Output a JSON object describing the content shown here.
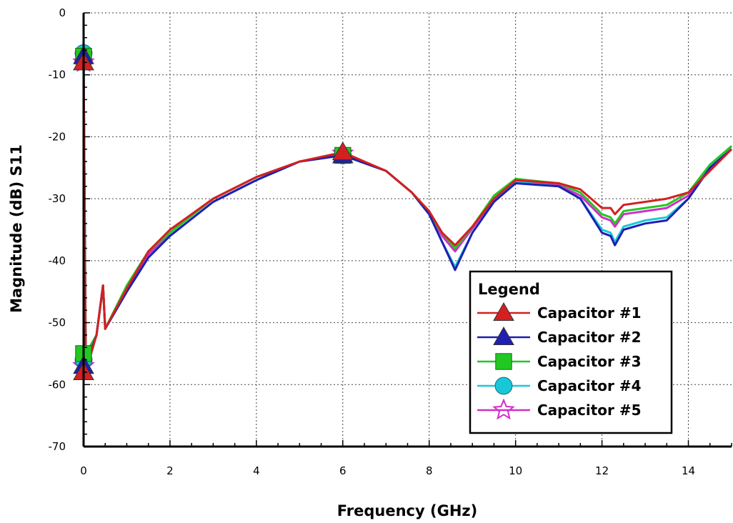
{
  "chart_data": {
    "type": "line",
    "title": "",
    "xlabel": "Frequency (GHz)",
    "ylabel": "Magnitude (dB) S11",
    "xlim": [
      0,
      15
    ],
    "ylim": [
      -70,
      0
    ],
    "x_ticks": [
      0,
      2,
      4,
      6,
      8,
      10,
      12,
      14
    ],
    "y_ticks": [
      0,
      -10,
      -20,
      -30,
      -40,
      -50,
      -60,
      -70
    ],
    "grid": true,
    "legend": {
      "title": "Legend",
      "position": "bottom-right"
    },
    "series": [
      {
        "name": "Capacitor #1",
        "color": "#d42020",
        "marker": "triangle",
        "x": [
          0,
          0.05,
          0.3,
          0.45,
          0.5,
          1,
          1.5,
          2,
          3,
          4,
          5,
          6,
          7,
          7.6,
          8,
          8.3,
          8.6,
          9,
          9.5,
          10,
          11,
          11.5,
          12,
          12.2,
          12.3,
          12.5,
          13,
          13.5,
          14,
          14.5,
          15
        ],
        "y": [
          -8,
          -58,
          -52,
          -44,
          -51,
          -44.5,
          -38.5,
          -35,
          -30,
          -26.5,
          -24,
          -22.5,
          -25.5,
          -29,
          -32,
          -35.5,
          -37.5,
          -34.5,
          -30,
          -27,
          -27.5,
          -28.5,
          -31.5,
          -31.5,
          -32.5,
          -31,
          -30.5,
          -30,
          -29,
          -25.5,
          -22
        ]
      },
      {
        "name": "Capacitor #2",
        "color": "#1f1fb0",
        "marker": "triangle",
        "x": [
          0,
          0.05,
          0.3,
          0.45,
          0.5,
          1,
          1.5,
          2,
          3,
          4,
          5,
          6,
          7,
          7.6,
          8,
          8.3,
          8.6,
          9,
          9.5,
          10,
          11,
          11.5,
          12,
          12.2,
          12.3,
          12.5,
          13,
          13.5,
          14,
          14.5,
          15
        ],
        "y": [
          -7,
          -57,
          -52,
          -44,
          -51,
          -45,
          -39.5,
          -36,
          -30.5,
          -27,
          -24,
          -23,
          -25.5,
          -29,
          -32.5,
          -37,
          -41.5,
          -35.5,
          -30.5,
          -27.5,
          -28,
          -30,
          -35.5,
          -36,
          -37.5,
          -35,
          -34,
          -33.5,
          -30,
          -25,
          -22
        ]
      },
      {
        "name": "Capacitor #3",
        "color": "#22c822",
        "marker": "square",
        "x": [
          0,
          0.05,
          0.3,
          0.45,
          0.5,
          1,
          1.5,
          2,
          3,
          4,
          5,
          6,
          7,
          7.6,
          8,
          8.3,
          8.6,
          9,
          9.5,
          10,
          11,
          11.5,
          12,
          12.2,
          12.3,
          12.5,
          13,
          13.5,
          14,
          14.5,
          15
        ],
        "y": [
          -7,
          -55,
          -52,
          -44,
          -51,
          -44,
          -38.5,
          -35.5,
          -30,
          -26.5,
          -24,
          -23,
          -25.5,
          -29,
          -32.5,
          -35.5,
          -38,
          -34.5,
          -29.5,
          -26.8,
          -27.5,
          -29,
          -32.5,
          -33,
          -34,
          -32,
          -31.5,
          -31,
          -29,
          -24.5,
          -21.5
        ]
      },
      {
        "name": "Capacitor #4",
        "color": "#18c8d8",
        "marker": "circle",
        "x": [
          0,
          0.05,
          0.3,
          0.45,
          0.5,
          1,
          1.5,
          2,
          3,
          4,
          5,
          6,
          7,
          7.6,
          8,
          8.3,
          8.6,
          9,
          9.5,
          10,
          11,
          11.5,
          12,
          12.2,
          12.3,
          12.5,
          13,
          13.5,
          14,
          14.5,
          15
        ],
        "y": [
          -6.5,
          -56,
          -52,
          -44,
          -51,
          -45,
          -39.5,
          -36,
          -30.5,
          -27,
          -24,
          -23,
          -25.5,
          -29,
          -32.5,
          -37,
          -41,
          -35.5,
          -30.5,
          -27.3,
          -28,
          -30,
          -35,
          -35.5,
          -37,
          -34.5,
          -33.5,
          -33,
          -30,
          -25,
          -21.5
        ]
      },
      {
        "name": "Capacitor #5",
        "color": "#d030c8",
        "marker": "star",
        "x": [
          0,
          0.05,
          0.3,
          0.45,
          0.5,
          1,
          1.5,
          2,
          3,
          4,
          5,
          6,
          7,
          7.6,
          8,
          8.3,
          8.6,
          9,
          9.5,
          10,
          11,
          11.5,
          12,
          12.2,
          12.3,
          12.5,
          13,
          13.5,
          14,
          14.5,
          15
        ],
        "y": [
          -8,
          -57,
          -52,
          -44,
          -51,
          -44.5,
          -39,
          -35.5,
          -30,
          -26.5,
          -24,
          -22.7,
          -25.5,
          -29,
          -32.2,
          -36,
          -38.5,
          -34.8,
          -30,
          -27.2,
          -27.8,
          -29.5,
          -33,
          -33.5,
          -34.5,
          -32.5,
          -32,
          -31.5,
          -29.5,
          -25,
          -22
        ]
      }
    ]
  }
}
